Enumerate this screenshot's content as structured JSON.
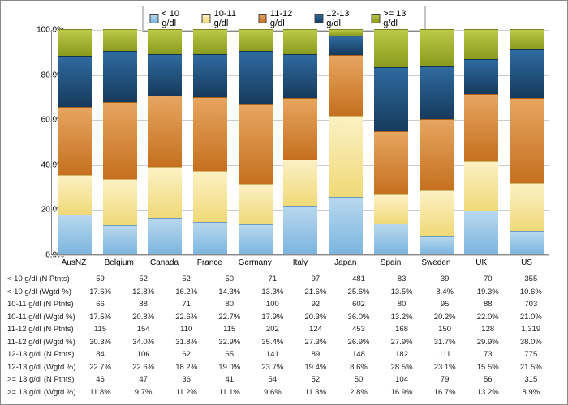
{
  "chart": {
    "type": "stacked-bar-100",
    "series": [
      {
        "key": "s0",
        "label": "< 10 g/dl",
        "color": "#9ec9e8",
        "gradient": [
          "#b8d8ee",
          "#7cb5df"
        ]
      },
      {
        "key": "s1",
        "label": "10-11 g/dl",
        "color": "#f8e7a0",
        "gradient": [
          "#fcf1c4",
          "#f0d978"
        ]
      },
      {
        "key": "s2",
        "label": "11-12 g/dl",
        "color": "#d9883a",
        "gradient": [
          "#e7a560",
          "#c5701f"
        ]
      },
      {
        "key": "s3",
        "label": "12-13 g/dl",
        "color": "#1f4e79",
        "gradient": [
          "#2f6aa0",
          "#163a5c"
        ]
      },
      {
        "key": "s4",
        "label": ">= 13 g/dl",
        "color": "#a3b32a",
        "gradient": [
          "#bcc94a",
          "#8a9a1c"
        ]
      }
    ],
    "categories": [
      "AusNZ",
      "Belgium",
      "Canada",
      "France",
      "Germany",
      "Italy",
      "Japan",
      "Spain",
      "Sweden",
      "UK",
      "US"
    ],
    "stacks": [
      [
        17.6,
        17.5,
        30.3,
        22.7,
        11.8
      ],
      [
        12.8,
        20.8,
        34.0,
        22.6,
        9.7
      ],
      [
        16.2,
        22.6,
        31.8,
        18.2,
        11.2
      ],
      [
        14.3,
        22.7,
        32.9,
        19.0,
        11.1
      ],
      [
        13.3,
        17.9,
        35.4,
        23.7,
        9.6
      ],
      [
        21.6,
        20.3,
        27.3,
        19.4,
        11.3
      ],
      [
        25.6,
        36.0,
        26.9,
        8.6,
        2.8
      ],
      [
        13.5,
        13.2,
        27.9,
        28.5,
        16.9
      ],
      [
        8.4,
        20.2,
        31.7,
        23.1,
        16.7
      ],
      [
        19.3,
        22.0,
        29.9,
        15.5,
        13.2
      ],
      [
        10.6,
        21.0,
        38.0,
        21.5,
        8.9
      ]
    ],
    "yticks": [
      0,
      20,
      40,
      60,
      80,
      100
    ],
    "ytick_labels": [
      "0.0%",
      "20.0%",
      "40.0%",
      "60.0%",
      "80.0%",
      "100.0%"
    ]
  },
  "table": {
    "rows": [
      {
        "label": "< 10 g/dl  (N Ptnts)",
        "vals": [
          "59",
          "52",
          "52",
          "50",
          "71",
          "97",
          "481",
          "83",
          "39",
          "70",
          "355"
        ]
      },
      {
        "label": "< 10 g/dl (Wgtd %)",
        "vals": [
          "17.6%",
          "12.8%",
          "16.2%",
          "14.3%",
          "13.3%",
          "21.6%",
          "25.6%",
          "13.5%",
          "8.4%",
          "19.3%",
          "10.6%"
        ]
      },
      {
        "label": "10-11 g/dl (N Ptnts)",
        "vals": [
          "66",
          "88",
          "71",
          "80",
          "100",
          "92",
          "602",
          "80",
          "95",
          "88",
          "703"
        ]
      },
      {
        "label": "10-11 g/dl (Wgtd %)",
        "vals": [
          "17.5%",
          "20.8%",
          "22.6%",
          "22.7%",
          "17.9%",
          "20.3%",
          "36.0%",
          "13.2%",
          "20.2%",
          "22.0%",
          "21.0%"
        ]
      },
      {
        "label": "11-12 g/dl (N Ptnts)",
        "vals": [
          "115",
          "154",
          "110",
          "115",
          "202",
          "124",
          "453",
          "168",
          "150",
          "128",
          "1,319"
        ]
      },
      {
        "label": "11-12 g/dl (Wgtd %)",
        "vals": [
          "30.3%",
          "34.0%",
          "31.8%",
          "32.9%",
          "35.4%",
          "27.3%",
          "26.9%",
          "27.9%",
          "31.7%",
          "29.9%",
          "38.0%"
        ]
      },
      {
        "label": "12-13 g/dl (N Ptnts)",
        "vals": [
          "84",
          "106",
          "62",
          "65",
          "141",
          "89",
          "148",
          "182",
          "111",
          "73",
          "775"
        ]
      },
      {
        "label": "12-13 g/dl (Wgtd %)",
        "vals": [
          "22.7%",
          "22.6%",
          "18.2%",
          "19.0%",
          "23.7%",
          "19.4%",
          "8.6%",
          "28.5%",
          "23.1%",
          "15.5%",
          "21.5%"
        ]
      },
      {
        "label": ">= 13 g/dl (N Ptnts)",
        "vals": [
          "46",
          "47",
          "36",
          "41",
          "54",
          "52",
          "50",
          "104",
          "79",
          "56",
          "315"
        ]
      },
      {
        "label": ">= 13 g/dl (Wgtd %)",
        "vals": [
          "11.8%",
          "9.7%",
          "11.2%",
          "11.1%",
          "9.6%",
          "11.3%",
          "2.8%",
          "16.9%",
          "16.7%",
          "13.2%",
          "8.9%"
        ]
      }
    ]
  }
}
